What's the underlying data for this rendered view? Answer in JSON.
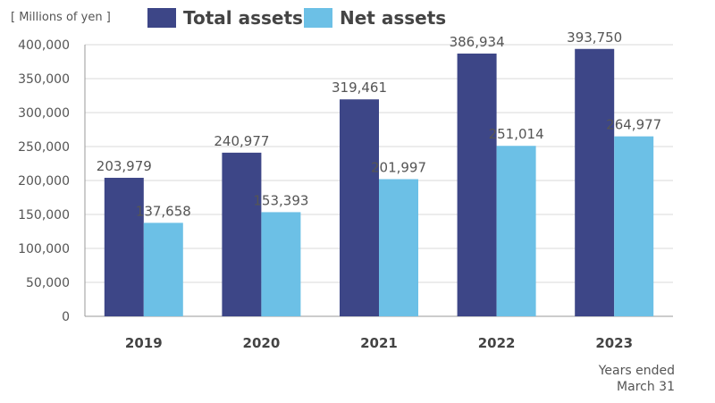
{
  "unit_label": "[ Millions of yen ]",
  "note": [
    "Years ended",
    "March 31"
  ],
  "colors": {
    "total": "#3d4687",
    "net": "#6cc0e6",
    "axis": "#999999",
    "grid": "#d9d9d9"
  },
  "chart_data": {
    "type": "bar",
    "categories": [
      "2019",
      "2020",
      "2021",
      "2022",
      "2023"
    ],
    "series": [
      {
        "name": "Total assets",
        "values": [
          203979,
          240977,
          319461,
          386934,
          393750
        ],
        "labels": [
          "203,979",
          "240,977",
          "319,461",
          "386,934",
          "393,750"
        ]
      },
      {
        "name": "Net assets",
        "values": [
          137658,
          153393,
          201997,
          251014,
          264977
        ],
        "labels": [
          "137,658",
          "153,393",
          "201,997",
          "251,014",
          "264,977"
        ]
      }
    ],
    "ylim": [
      0,
      400000
    ],
    "yticks": [
      "0",
      "50,000",
      "100,000",
      "150,000",
      "200,000",
      "250,000",
      "300,000",
      "350,000",
      "400,000"
    ],
    "grid": true,
    "legend_position": "top"
  }
}
